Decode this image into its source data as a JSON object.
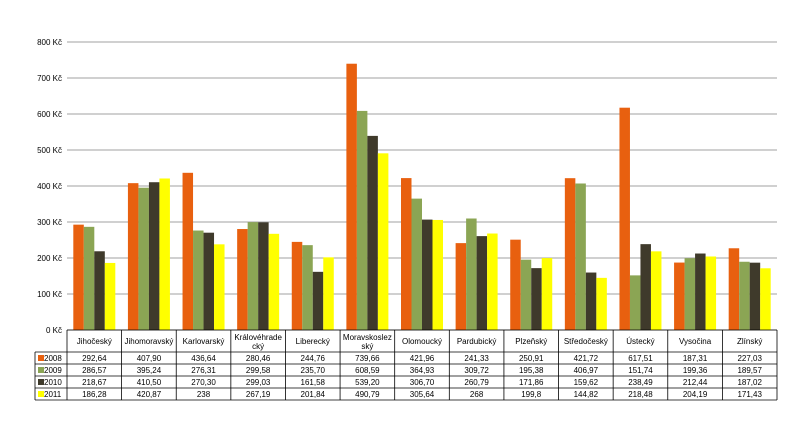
{
  "chart_data": {
    "type": "bar",
    "title": "",
    "xlabel": "",
    "ylabel": "",
    "ylim": [
      0,
      800
    ],
    "y_ticks": [
      "0 Kč",
      "100 Kč",
      "200 Kč",
      "300 Kč",
      "400 Kč",
      "500 Kč",
      "600 Kč",
      "700 Kč",
      "800 Kč"
    ],
    "grid": true,
    "legend": "left table",
    "categories": [
      "Jihočeský",
      "Jihomoravský",
      "Karlovarský",
      "Královéhradeckký",
      "Liberecký",
      "Moravskoslezský",
      "Olomoucký",
      "Pardubický",
      "Plzeňský",
      "Středočeský",
      "Ústecký",
      "Vysočina",
      "Zlínský"
    ],
    "category_labels": [
      [
        "Jihočeský"
      ],
      [
        "Jihomoravský"
      ],
      [
        "Karlovarský"
      ],
      [
        "Královéhrade",
        "cký"
      ],
      [
        "Liberecký"
      ],
      [
        "Moravskoslez",
        "ský"
      ],
      [
        "Olomoucký"
      ],
      [
        "Pardubický"
      ],
      [
        "Plzeňský"
      ],
      [
        "Středočeský"
      ],
      [
        "Ústecký"
      ],
      [
        "Vysočina"
      ],
      [
        "Zlínský"
      ]
    ],
    "series": [
      {
        "name": "2008",
        "color": "#E8600F",
        "values": [
          292.64,
          407.9,
          436.64,
          280.46,
          244.76,
          739.66,
          421.96,
          241.33,
          250.91,
          421.72,
          617.51,
          187.31,
          227.03
        ],
        "labels": [
          "292,64",
          "407,90",
          "436,64",
          "280,46",
          "244,76",
          "739,66",
          "421,96",
          "241,33",
          "250,91",
          "421,72",
          "617,51",
          "187,31",
          "227,03"
        ]
      },
      {
        "name": "2009",
        "color": "#8BA554",
        "values": [
          286.57,
          395.24,
          276.31,
          299.58,
          235.7,
          608.59,
          364.93,
          309.72,
          195.38,
          406.97,
          151.74,
          199.36,
          189.57
        ],
        "labels": [
          "286,57",
          "395,24",
          "276,31",
          "299,58",
          "235,70",
          "608,59",
          "364,93",
          "309,72",
          "195,38",
          "406,97",
          "151,74",
          "199,36",
          "189,57"
        ]
      },
      {
        "name": "2010",
        "color": "#3F3A2B",
        "values": [
          218.67,
          410.5,
          270.3,
          299.03,
          161.58,
          539.2,
          306.7,
          260.79,
          171.86,
          159.62,
          238.49,
          212.44,
          187.02
        ],
        "labels": [
          "218,67",
          "410,50",
          "270,30",
          "299,03",
          "161,58",
          "539,20",
          "306,70",
          "260,79",
          "171,86",
          "159,62",
          "238,49",
          "212,44",
          "187,02"
        ]
      },
      {
        "name": "2011",
        "color": "#FFFF00",
        "values": [
          186.28,
          420.87,
          238,
          267.19,
          201.84,
          490.79,
          305.64,
          268,
          199.8,
          144.82,
          218.48,
          204.19,
          171.43
        ],
        "labels": [
          "186,28",
          "420,87",
          "238",
          "267,19",
          "201,84",
          "490,79",
          "305,64",
          "268",
          "199,8",
          "144,82",
          "218,48",
          "204,19",
          "171,43"
        ]
      }
    ]
  }
}
